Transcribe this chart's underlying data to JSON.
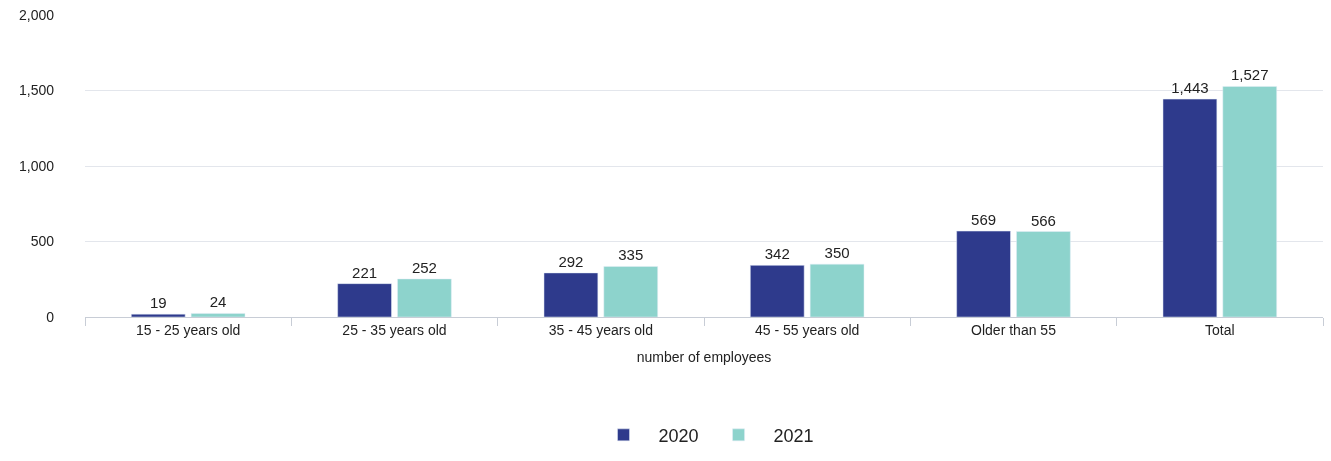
{
  "chart_data": {
    "type": "bar",
    "xlabel": "number of employees",
    "categories": [
      "15 - 25 years old",
      "25 - 35 years old",
      "35 - 45 years old",
      "45 - 55 years old",
      "Older than 55",
      "Total"
    ],
    "series": [
      {
        "name": "2020",
        "color": "#2e3a8c",
        "values": [
          19,
          221,
          292,
          342,
          569,
          1443
        ],
        "value_labels": [
          "19",
          "221",
          "292",
          "342",
          "569",
          "1,443"
        ]
      },
      {
        "name": "2021",
        "color": "#8dd3cc",
        "values": [
          24,
          252,
          335,
          350,
          566,
          1527
        ],
        "value_labels": [
          "24",
          "252",
          "335",
          "350",
          "566",
          "1,527"
        ]
      }
    ],
    "ylim": [
      0,
      2000
    ],
    "yticks": [
      {
        "value": 0,
        "label": "0"
      },
      {
        "value": 500,
        "label": "500"
      },
      {
        "value": 1000,
        "label": "1,000"
      },
      {
        "value": 1500,
        "label": "1,500"
      },
      {
        "value": 2000,
        "label": "2,000"
      }
    ],
    "grid": "y",
    "legend": "bottom"
  }
}
